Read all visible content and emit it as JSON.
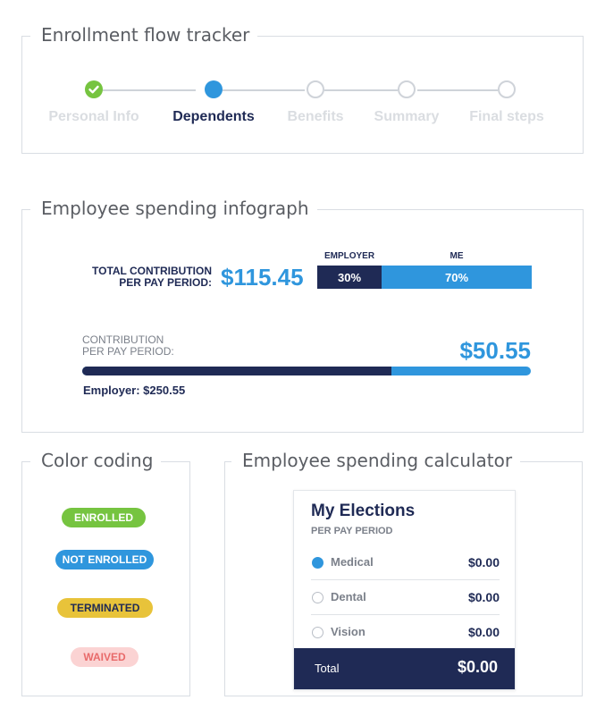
{
  "enrollment": {
    "title": "Enrollment flow tracker",
    "steps": [
      {
        "label": "Personal Info",
        "state": "done"
      },
      {
        "label": "Dependents",
        "state": "active"
      },
      {
        "label": "Benefits",
        "state": "todo"
      },
      {
        "label": "Summary",
        "state": "todo"
      },
      {
        "label": "Final steps",
        "state": "todo"
      }
    ]
  },
  "infograph": {
    "title": "Employee spending infograph",
    "total_label_line1": "TOTAL CONTRIBUTION",
    "total_label_line2": "PER PAY PERIOD:",
    "total_amount": "$115.45",
    "employer_caption": "EMPLOYER",
    "me_caption": "ME",
    "employer_pct_label": "30%",
    "me_pct_label": "70%",
    "employer_pct": 0.3,
    "contribution_label_line1": "CONTRIBUTION",
    "contribution_label_line2": "PER PAY PERIOD:",
    "contribution_amount": "$50.55",
    "contribution_fill": 0.69,
    "employer_amount_label": "Employer: $250.55"
  },
  "color_coding": {
    "title": "Color coding",
    "badges": [
      {
        "label": "ENROLLED",
        "bg": "#76c440",
        "fg": "#ffffff"
      },
      {
        "label": "NOT ENROLLED",
        "bg": "#2f96dd",
        "fg": "#ffffff"
      },
      {
        "label": "TERMINATED",
        "bg": "#e8c33a",
        "fg": "#1f2a55"
      },
      {
        "label": "WAIVED",
        "bg": "#fbd3d3",
        "fg": "#e86a6a"
      }
    ]
  },
  "calculator": {
    "title": "Employee spending calculator",
    "card_title": "My Elections",
    "card_subtitle": "PER PAY PERIOD",
    "rows": [
      {
        "label": "Medical",
        "value": "$0.00",
        "selected": true
      },
      {
        "label": "Dental",
        "value": "$0.00",
        "selected": false
      },
      {
        "label": "Vision",
        "value": "$0.00",
        "selected": false
      }
    ],
    "total_label": "Total",
    "total_value": "$0.00"
  },
  "colors": {
    "navy": "#1f2a55",
    "blue": "#2f96dd",
    "green": "#76c440",
    "gray_border": "#d9dde3"
  }
}
